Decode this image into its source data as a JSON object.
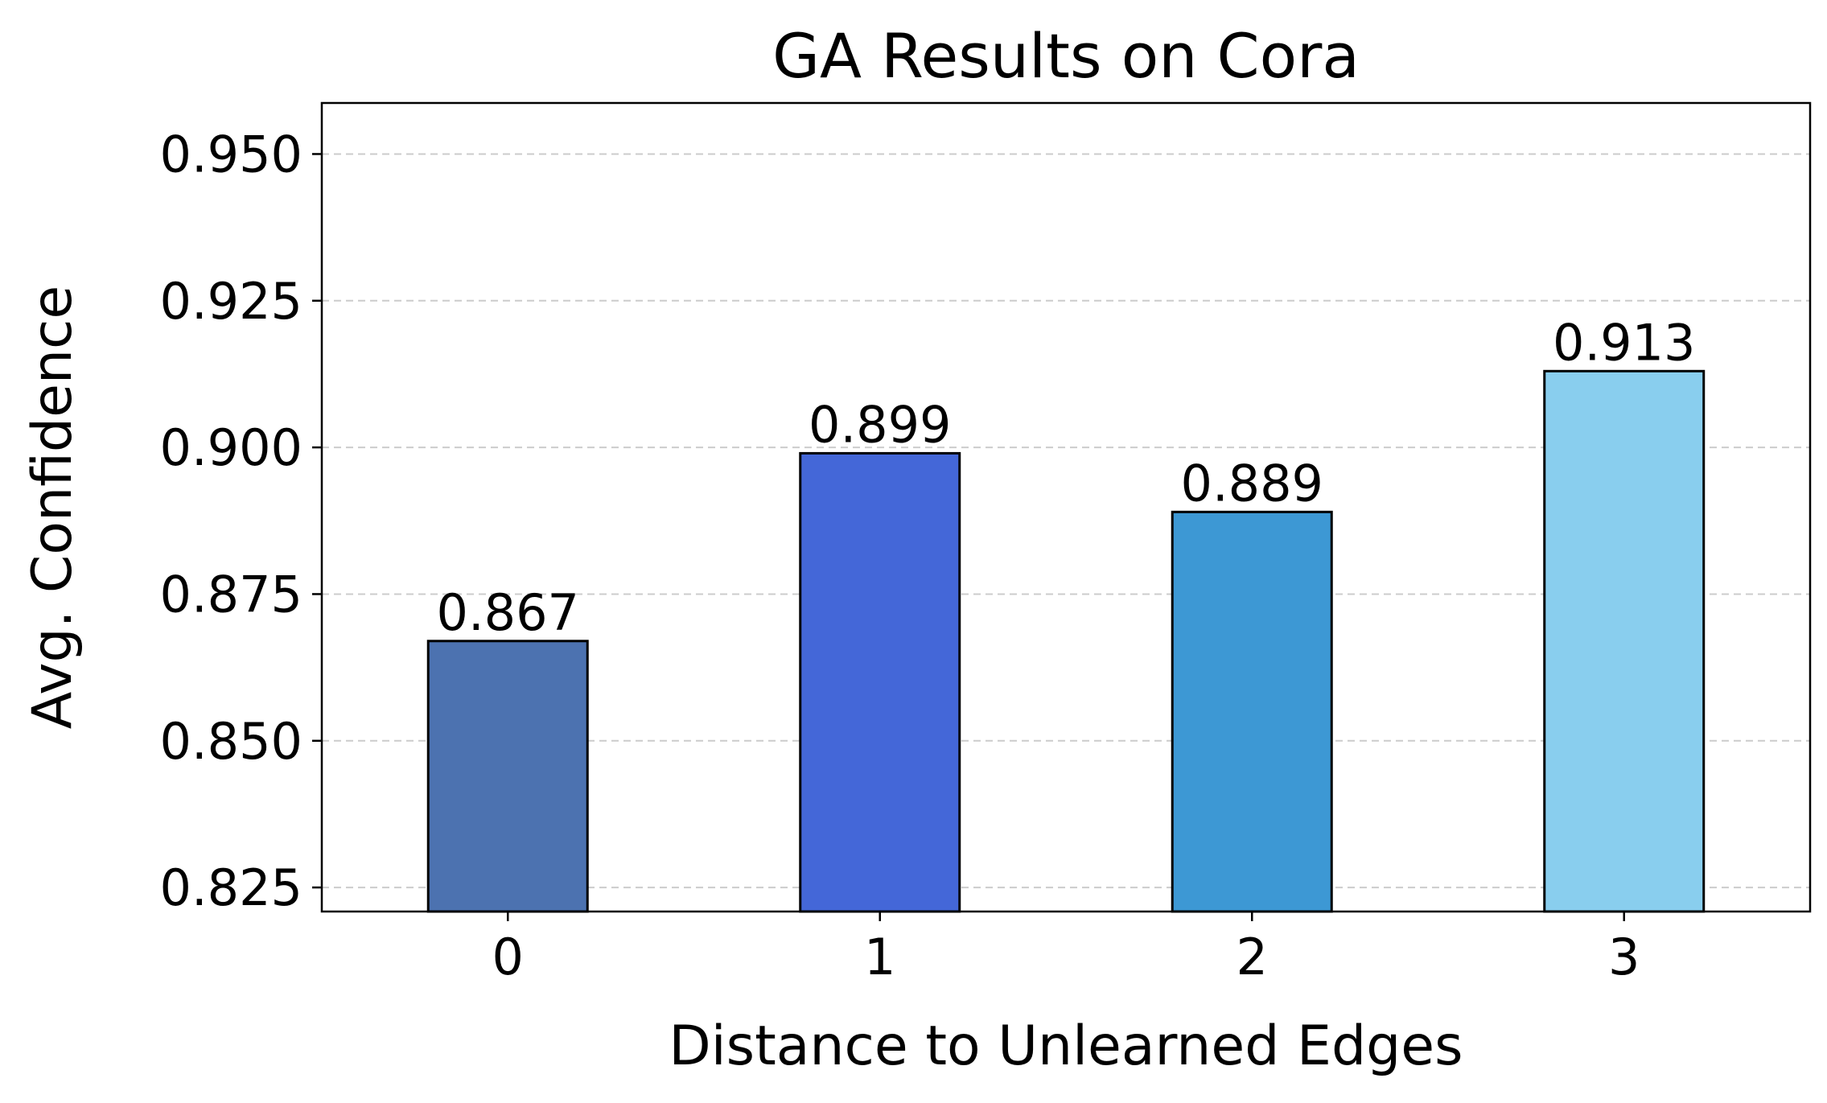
{
  "chart_data": {
    "type": "bar",
    "title": "GA Results on Cora",
    "xlabel": "Distance to Unlearned Edges",
    "ylabel": "Avg. Confidence",
    "categories": [
      "0",
      "1",
      "2",
      "3"
    ],
    "values": [
      0.867,
      0.899,
      0.889,
      0.913
    ],
    "data_labels": [
      "0.867",
      "0.899",
      "0.889",
      "0.913"
    ],
    "bar_colors": [
      "#4c72b0",
      "#4467d8",
      "#3d98d4",
      "#89ceee"
    ],
    "ylim": [
      0.8209,
      0.9587
    ],
    "yticks": [
      0.825,
      0.85,
      0.875,
      0.9,
      0.925,
      0.95
    ],
    "ytick_labels": [
      "0.825",
      "0.850",
      "0.875",
      "0.900",
      "0.925",
      "0.950"
    ],
    "grid": "y-dashed",
    "legend": "none"
  }
}
